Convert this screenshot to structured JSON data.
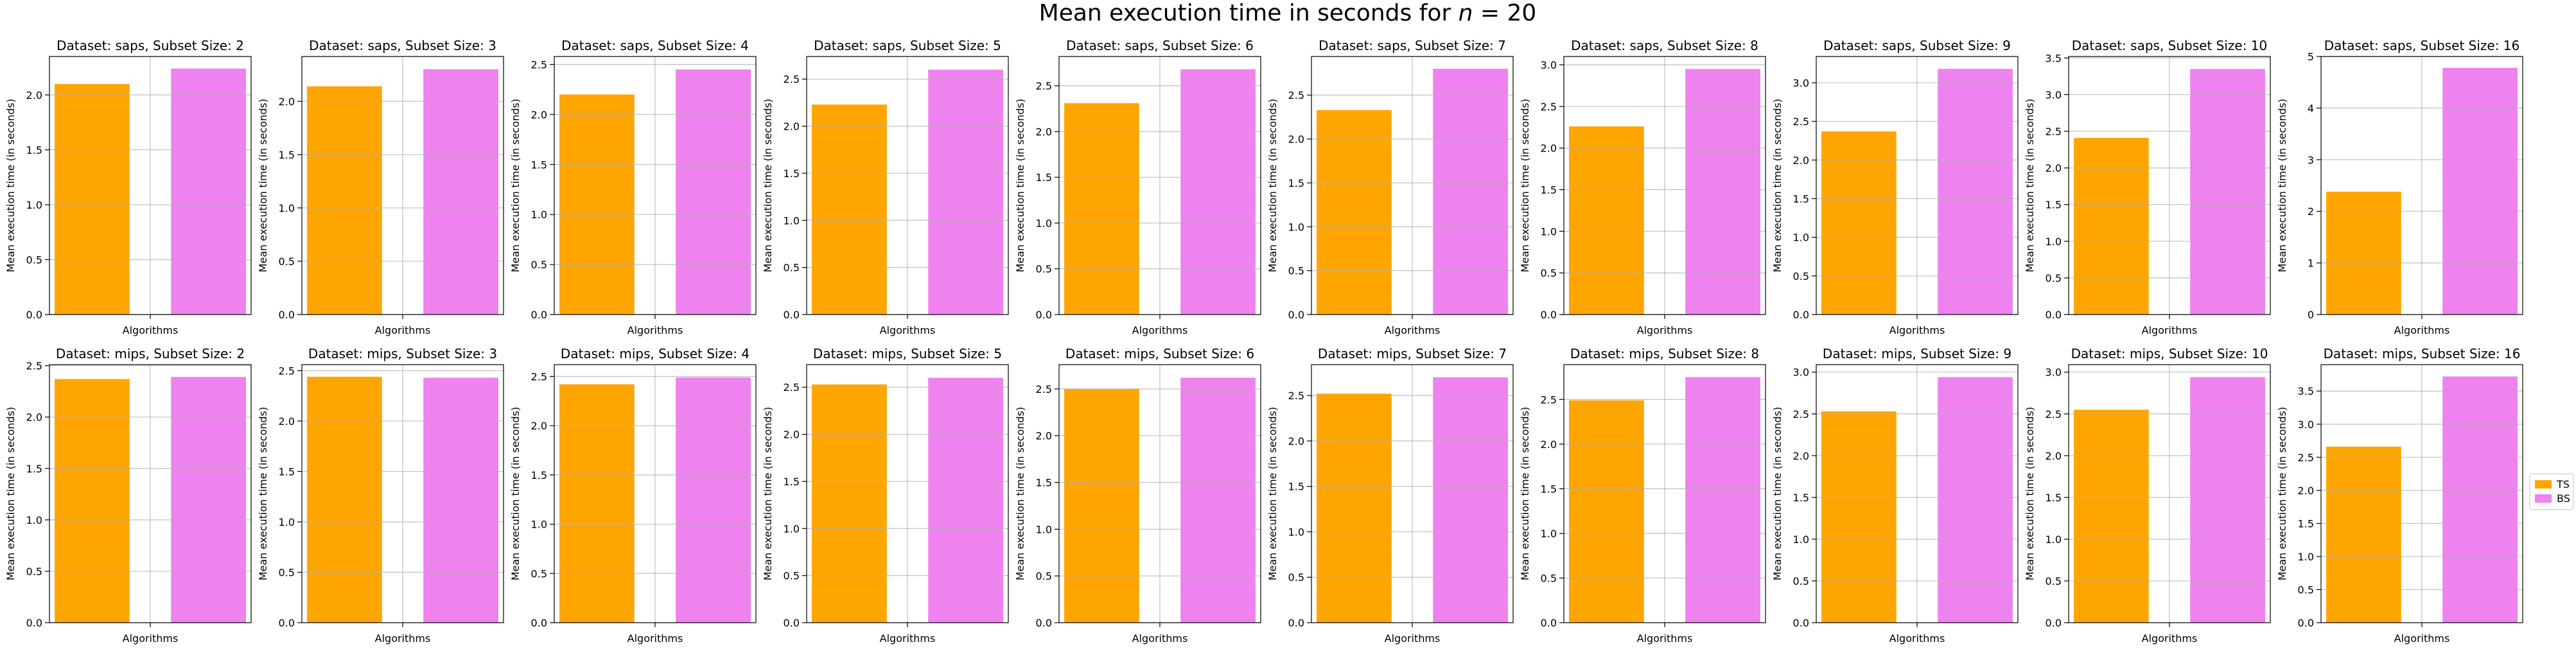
{
  "figure": {
    "title_prefix": "Mean execution time in seconds for",
    "title_var": "n",
    "title_eq": " = 20"
  },
  "legend": {
    "position": "right-center",
    "entries": [
      {
        "label": "TS",
        "color": "#FFA500"
      },
      {
        "label": "BS",
        "color": "#EE82EE"
      }
    ]
  },
  "chart_data": [
    {
      "type": "bar",
      "title": "Dataset: saps, Subset Size: 2",
      "xlabel": "Algorithms",
      "ylabel": "Mean execution time (in seconds)",
      "series": [
        {
          "name": "TS",
          "values": [
            2.1
          ]
        },
        {
          "name": "BS",
          "values": [
            2.24
          ]
        }
      ],
      "ylim": [
        0,
        2.35
      ],
      "yticks": [
        "0.0",
        "0.5",
        "1.0",
        "1.5",
        "2.0"
      ],
      "ytick_values": [
        0,
        0.5,
        1.0,
        1.5,
        2.0
      ],
      "grid": true
    },
    {
      "type": "bar",
      "title": "Dataset: saps, Subset Size: 3",
      "xlabel": "Algorithms",
      "ylabel": "Mean execution time (in seconds)",
      "series": [
        {
          "name": "TS",
          "values": [
            2.14
          ]
        },
        {
          "name": "BS",
          "values": [
            2.3
          ]
        }
      ],
      "ylim": [
        0,
        2.42
      ],
      "yticks": [
        "0.0",
        "0.5",
        "1.0",
        "1.5",
        "2.0"
      ],
      "ytick_values": [
        0,
        0.5,
        1.0,
        1.5,
        2.0
      ],
      "grid": true
    },
    {
      "type": "bar",
      "title": "Dataset: saps, Subset Size: 4",
      "xlabel": "Algorithms",
      "ylabel": "Mean execution time (in seconds)",
      "series": [
        {
          "name": "TS",
          "values": [
            2.2
          ]
        },
        {
          "name": "BS",
          "values": [
            2.45
          ]
        }
      ],
      "ylim": [
        0,
        2.58
      ],
      "yticks": [
        "0.0",
        "0.5",
        "1.0",
        "1.5",
        "2.0",
        "2.5"
      ],
      "ytick_values": [
        0,
        0.5,
        1.0,
        1.5,
        2.0,
        2.5
      ],
      "grid": true
    },
    {
      "type": "bar",
      "title": "Dataset: saps, Subset Size: 5",
      "xlabel": "Algorithms",
      "ylabel": "Mean execution time (in seconds)",
      "series": [
        {
          "name": "TS",
          "values": [
            2.23
          ]
        },
        {
          "name": "BS",
          "values": [
            2.6
          ]
        }
      ],
      "ylim": [
        0,
        2.74
      ],
      "yticks": [
        "0.0",
        "0.5",
        "1.0",
        "1.5",
        "2.0",
        "2.5"
      ],
      "ytick_values": [
        0,
        0.5,
        1.0,
        1.5,
        2.0,
        2.5
      ],
      "grid": true
    },
    {
      "type": "bar",
      "title": "Dataset: saps, Subset Size: 6",
      "xlabel": "Algorithms",
      "ylabel": "Mean execution time (in seconds)",
      "series": [
        {
          "name": "TS",
          "values": [
            2.31
          ]
        },
        {
          "name": "BS",
          "values": [
            2.68
          ]
        }
      ],
      "ylim": [
        0,
        2.82
      ],
      "yticks": [
        "0.0",
        "0.5",
        "1.0",
        "1.5",
        "2.0",
        "2.5"
      ],
      "ytick_values": [
        0,
        0.5,
        1.0,
        1.5,
        2.0,
        2.5
      ],
      "grid": true
    },
    {
      "type": "bar",
      "title": "Dataset: saps, Subset Size: 7",
      "xlabel": "Algorithms",
      "ylabel": "Mean execution time (in seconds)",
      "series": [
        {
          "name": "TS",
          "values": [
            2.33
          ]
        },
        {
          "name": "BS",
          "values": [
            2.8
          ]
        }
      ],
      "ylim": [
        0,
        2.94
      ],
      "yticks": [
        "0.0",
        "0.5",
        "1.0",
        "1.5",
        "2.0",
        "2.5"
      ],
      "ytick_values": [
        0,
        0.5,
        1.0,
        1.5,
        2.0,
        2.5
      ],
      "grid": true
    },
    {
      "type": "bar",
      "title": "Dataset: saps, Subset Size: 8",
      "xlabel": "Algorithms",
      "ylabel": "Mean execution time (in seconds)",
      "series": [
        {
          "name": "TS",
          "values": [
            2.26
          ]
        },
        {
          "name": "BS",
          "values": [
            2.95
          ]
        }
      ],
      "ylim": [
        0,
        3.1
      ],
      "yticks": [
        "0.0",
        "0.5",
        "1.0",
        "1.5",
        "2.0",
        "2.5",
        "3.0"
      ],
      "ytick_values": [
        0,
        0.5,
        1.0,
        1.5,
        2.0,
        2.5,
        3.0
      ],
      "grid": true
    },
    {
      "type": "bar",
      "title": "Dataset: saps, Subset Size: 9",
      "xlabel": "Algorithms",
      "ylabel": "Mean execution time (in seconds)",
      "series": [
        {
          "name": "TS",
          "values": [
            2.37
          ]
        },
        {
          "name": "BS",
          "values": [
            3.18
          ]
        }
      ],
      "ylim": [
        0,
        3.34
      ],
      "yticks": [
        "0.0",
        "0.5",
        "1.0",
        "1.5",
        "2.0",
        "2.5",
        "3.0"
      ],
      "ytick_values": [
        0,
        0.5,
        1.0,
        1.5,
        2.0,
        2.5,
        3.0
      ],
      "grid": true
    },
    {
      "type": "bar",
      "title": "Dataset: saps, Subset Size: 10",
      "xlabel": "Algorithms",
      "ylabel": "Mean execution time (in seconds)",
      "series": [
        {
          "name": "TS",
          "values": [
            2.41
          ]
        },
        {
          "name": "BS",
          "values": [
            3.35
          ]
        }
      ],
      "ylim": [
        0,
        3.52
      ],
      "yticks": [
        "0.0",
        "0.5",
        "1.0",
        "1.5",
        "2.0",
        "2.5",
        "3.0",
        "3.5"
      ],
      "ytick_values": [
        0,
        0.5,
        1.0,
        1.5,
        2.0,
        2.5,
        3.0,
        3.5
      ],
      "grid": true
    },
    {
      "type": "bar",
      "title": "Dataset: saps, Subset Size: 16",
      "xlabel": "Algorithms",
      "ylabel": "Mean execution time (in seconds)",
      "series": [
        {
          "name": "TS",
          "values": [
            2.38
          ]
        },
        {
          "name": "BS",
          "values": [
            4.78
          ]
        }
      ],
      "ylim": [
        0,
        5.0
      ],
      "yticks": [
        "0",
        "1",
        "2",
        "3",
        "4",
        "5"
      ],
      "ytick_values": [
        0,
        1,
        2,
        3,
        4,
        5
      ],
      "grid": true
    },
    {
      "type": "bar",
      "title": "Dataset: mips, Subset Size: 2",
      "xlabel": "Algorithms",
      "ylabel": "Mean execution time (in seconds)",
      "series": [
        {
          "name": "TS",
          "values": [
            2.37
          ]
        },
        {
          "name": "BS",
          "values": [
            2.39
          ]
        }
      ],
      "ylim": [
        0,
        2.51
      ],
      "yticks": [
        "0.0",
        "0.5",
        "1.0",
        "1.5",
        "2.0",
        "2.5"
      ],
      "ytick_values": [
        0,
        0.5,
        1.0,
        1.5,
        2.0,
        2.5
      ],
      "grid": true
    },
    {
      "type": "bar",
      "title": "Dataset: mips, Subset Size: 3",
      "xlabel": "Algorithms",
      "ylabel": "Mean execution time (in seconds)",
      "series": [
        {
          "name": "TS",
          "values": [
            2.44
          ]
        },
        {
          "name": "BS",
          "values": [
            2.43
          ]
        }
      ],
      "ylim": [
        0,
        2.56
      ],
      "yticks": [
        "0.0",
        "0.5",
        "1.0",
        "1.5",
        "2.0",
        "2.5"
      ],
      "ytick_values": [
        0,
        0.5,
        1.0,
        1.5,
        2.0,
        2.5
      ],
      "grid": true
    },
    {
      "type": "bar",
      "title": "Dataset: mips, Subset Size: 4",
      "xlabel": "Algorithms",
      "ylabel": "Mean execution time (in seconds)",
      "series": [
        {
          "name": "TS",
          "values": [
            2.42
          ]
        },
        {
          "name": "BS",
          "values": [
            2.49
          ]
        }
      ],
      "ylim": [
        0,
        2.62
      ],
      "yticks": [
        "0.0",
        "0.5",
        "1.0",
        "1.5",
        "2.0",
        "2.5"
      ],
      "ytick_values": [
        0,
        0.5,
        1.0,
        1.5,
        2.0,
        2.5
      ],
      "grid": true
    },
    {
      "type": "bar",
      "title": "Dataset: mips, Subset Size: 5",
      "xlabel": "Algorithms",
      "ylabel": "Mean execution time (in seconds)",
      "series": [
        {
          "name": "TS",
          "values": [
            2.53
          ]
        },
        {
          "name": "BS",
          "values": [
            2.6
          ]
        }
      ],
      "ylim": [
        0,
        2.74
      ],
      "yticks": [
        "0.0",
        "0.5",
        "1.0",
        "1.5",
        "2.0",
        "2.5"
      ],
      "ytick_values": [
        0,
        0.5,
        1.0,
        1.5,
        2.0,
        2.5
      ],
      "grid": true
    },
    {
      "type": "bar",
      "title": "Dataset: mips, Subset Size: 6",
      "xlabel": "Algorithms",
      "ylabel": "Mean execution time (in seconds)",
      "series": [
        {
          "name": "TS",
          "values": [
            2.5
          ]
        },
        {
          "name": "BS",
          "values": [
            2.62
          ]
        }
      ],
      "ylim": [
        0,
        2.76
      ],
      "yticks": [
        "0.0",
        "0.5",
        "1.0",
        "1.5",
        "2.0",
        "2.5"
      ],
      "ytick_values": [
        0,
        0.5,
        1.0,
        1.5,
        2.0,
        2.5
      ],
      "grid": true
    },
    {
      "type": "bar",
      "title": "Dataset: mips, Subset Size: 7",
      "xlabel": "Algorithms",
      "ylabel": "Mean execution time (in seconds)",
      "series": [
        {
          "name": "TS",
          "values": [
            2.52
          ]
        },
        {
          "name": "BS",
          "values": [
            2.7
          ]
        }
      ],
      "ylim": [
        0,
        2.84
      ],
      "yticks": [
        "0.0",
        "0.5",
        "1.0",
        "1.5",
        "2.0",
        "2.5"
      ],
      "ytick_values": [
        0,
        0.5,
        1.0,
        1.5,
        2.0,
        2.5
      ],
      "grid": true
    },
    {
      "type": "bar",
      "title": "Dataset: mips, Subset Size: 8",
      "xlabel": "Algorithms",
      "ylabel": "Mean execution time (in seconds)",
      "series": [
        {
          "name": "TS",
          "values": [
            2.49
          ]
        },
        {
          "name": "BS",
          "values": [
            2.75
          ]
        }
      ],
      "ylim": [
        0,
        2.89
      ],
      "yticks": [
        "0.0",
        "0.5",
        "1.0",
        "1.5",
        "2.0",
        "2.5"
      ],
      "ytick_values": [
        0,
        0.5,
        1.0,
        1.5,
        2.0,
        2.5
      ],
      "grid": true
    },
    {
      "type": "bar",
      "title": "Dataset: mips, Subset Size: 9",
      "xlabel": "Algorithms",
      "ylabel": "Mean execution time (in seconds)",
      "series": [
        {
          "name": "TS",
          "values": [
            2.53
          ]
        },
        {
          "name": "BS",
          "values": [
            2.94
          ]
        }
      ],
      "ylim": [
        0,
        3.09
      ],
      "yticks": [
        "0.0",
        "0.5",
        "1.0",
        "1.5",
        "2.0",
        "2.5",
        "3.0"
      ],
      "ytick_values": [
        0,
        0.5,
        1.0,
        1.5,
        2.0,
        2.5,
        3.0
      ],
      "grid": true
    },
    {
      "type": "bar",
      "title": "Dataset: mips, Subset Size: 10",
      "xlabel": "Algorithms",
      "ylabel": "Mean execution time (in seconds)",
      "series": [
        {
          "name": "TS",
          "values": [
            2.55
          ]
        },
        {
          "name": "BS",
          "values": [
            2.94
          ]
        }
      ],
      "ylim": [
        0,
        3.09
      ],
      "yticks": [
        "0.0",
        "0.5",
        "1.0",
        "1.5",
        "2.0",
        "2.5",
        "3.0"
      ],
      "ytick_values": [
        0,
        0.5,
        1.0,
        1.5,
        2.0,
        2.5,
        3.0
      ],
      "grid": true
    },
    {
      "type": "bar",
      "title": "Dataset: mips, Subset Size: 16",
      "xlabel": "Algorithms",
      "ylabel": "Mean execution time (in seconds)",
      "series": [
        {
          "name": "TS",
          "values": [
            2.66
          ]
        },
        {
          "name": "BS",
          "values": [
            3.72
          ]
        }
      ],
      "ylim": [
        0,
        3.9
      ],
      "yticks": [
        "0.0",
        "0.5",
        "1.0",
        "1.5",
        "2.0",
        "2.5",
        "3.0",
        "3.5"
      ],
      "ytick_values": [
        0,
        0.5,
        1.0,
        1.5,
        2.0,
        2.5,
        3.0,
        3.5
      ],
      "grid": true
    }
  ]
}
